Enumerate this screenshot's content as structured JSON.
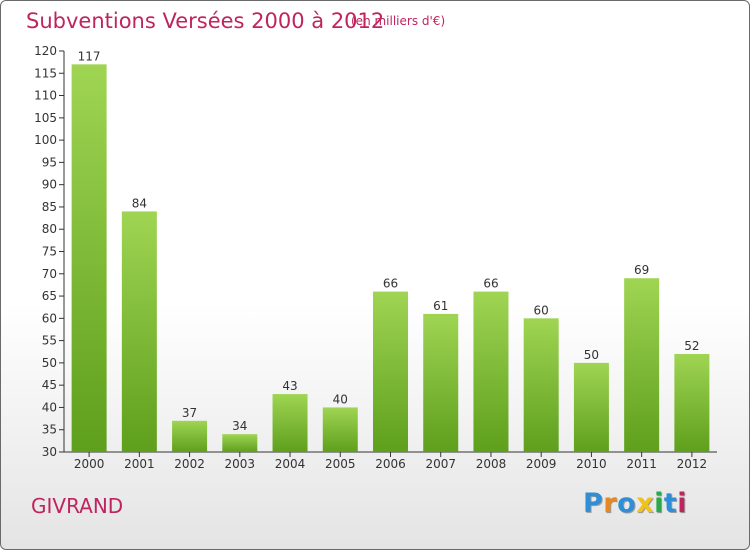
{
  "chart_data": {
    "type": "bar",
    "title": "Subventions Versées 2000 à 2012",
    "subtitle": "(en milliers d'€)",
    "categories": [
      "2000",
      "2001",
      "2002",
      "2003",
      "2004",
      "2005",
      "2006",
      "2007",
      "2008",
      "2009",
      "2010",
      "2011",
      "2012"
    ],
    "values": [
      117,
      84,
      37,
      34,
      43,
      40,
      66,
      61,
      66,
      60,
      50,
      69,
      52
    ],
    "ylim": [
      30,
      120
    ],
    "yticks": [
      30,
      35,
      40,
      45,
      50,
      55,
      60,
      65,
      70,
      75,
      80,
      85,
      90,
      95,
      100,
      105,
      110,
      115,
      120
    ],
    "grid": false,
    "bar_color_top": "#9fd553",
    "bar_color_bottom": "#5e9f1c",
    "axis_color": "#333333"
  },
  "commune": "GIVRAND",
  "logo": {
    "letters": [
      "P",
      "r",
      "o",
      "x",
      "i",
      "t",
      "i"
    ],
    "colors": [
      "#2f8ed6",
      "#e8871e",
      "#2f8ed6",
      "#f2c21a",
      "#2aa84a",
      "#2f8ed6",
      "#c0245e"
    ]
  }
}
